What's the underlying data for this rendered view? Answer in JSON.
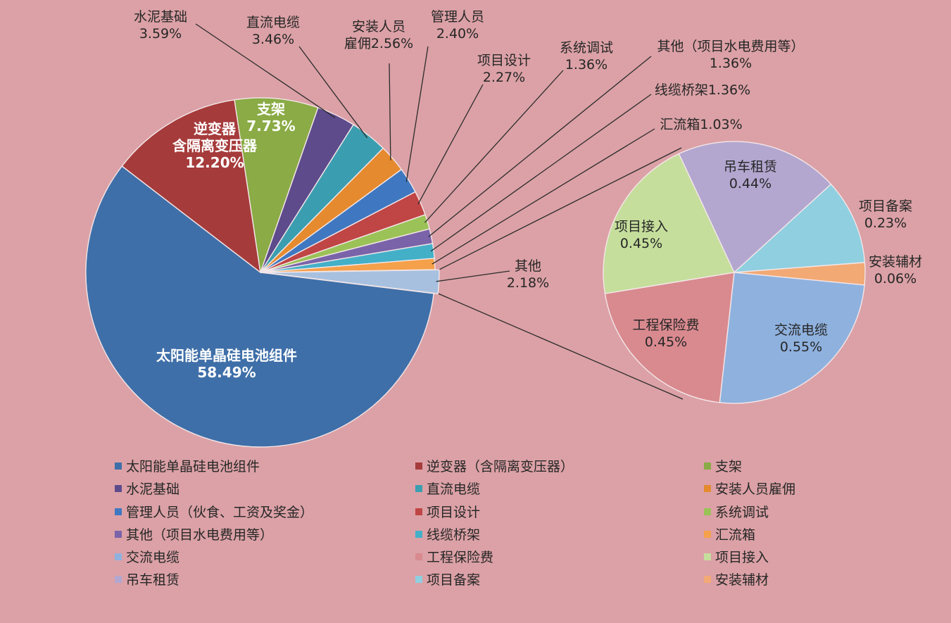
{
  "chart_data": {
    "type": "pie",
    "subtype": "pie-of-pie",
    "main_pie": [
      {
        "label": "太阳能单晶硅电池组件",
        "pct": "58.49%",
        "value": 58.49,
        "color": "#3f6fa8"
      },
      {
        "label": "逆变器（含隔离变压器）",
        "label_lines": [
          "逆变器",
          "含隔离变压器"
        ],
        "pct": "12.20%",
        "value": 12.2,
        "color": "#a63b3b"
      },
      {
        "label": "支架",
        "pct": "7.73%",
        "value": 7.73,
        "color": "#8aab45"
      },
      {
        "label": "水泥基础",
        "pct": "3.59%",
        "value": 3.59,
        "color": "#5d4b8c"
      },
      {
        "label": "直流电缆",
        "pct": "3.46%",
        "value": 3.46,
        "color": "#3b9eb0"
      },
      {
        "label": "安装人员雇佣",
        "label_lines": [
          "安装人员",
          "雇佣2.56%"
        ],
        "pct": "2.56%",
        "value": 2.56,
        "color": "#e58a2e"
      },
      {
        "label": "管理人员（伙食、工资及奖金）",
        "label_lines": [
          "管理人员",
          "2.40%"
        ],
        "pct": "2.40%",
        "value": 2.4,
        "color": "#3f78c0"
      },
      {
        "label": "项目设计",
        "pct": "2.27%",
        "value": 2.27,
        "color": "#c04545"
      },
      {
        "label": "系统调试",
        "pct": "1.36%",
        "value": 1.36,
        "color": "#9bc257"
      },
      {
        "label": "其他（项目水电费用等）",
        "label_lines": [
          "其他（项目水电费用等）",
          "1.36%"
        ],
        "pct": "1.36%",
        "value": 1.36,
        "color": "#7a63a8"
      },
      {
        "label": "线缆桥架",
        "label_lines": [
          "线缆桥架1.36%"
        ],
        "pct": "1.36%",
        "value": 1.36,
        "color": "#43b0c8"
      },
      {
        "label": "汇流箱",
        "label_lines": [
          "汇流箱1.03%"
        ],
        "pct": "1.03%",
        "value": 1.03,
        "color": "#f5a04a"
      },
      {
        "label": "其他",
        "pct": "2.18%",
        "value": 2.18,
        "color": "#a7c0df",
        "exploded": true
      }
    ],
    "secondary_pie": [
      {
        "label": "吊车租赁",
        "pct": "0.44%",
        "value": 0.44,
        "color": "#b3a7d0"
      },
      {
        "label": "项目备案",
        "pct": "0.23%",
        "value": 0.23,
        "color": "#8fcfe0"
      },
      {
        "label": "安装辅材",
        "pct": "0.06%",
        "value": 0.06,
        "color": "#f2a974"
      },
      {
        "label": "交流电缆",
        "pct": "0.55%",
        "value": 0.55,
        "color": "#8fb1de"
      },
      {
        "label": "工程保险费",
        "pct": "0.45%",
        "value": 0.45,
        "color": "#d98a8f"
      },
      {
        "label": "项目接入",
        "pct": "0.45%",
        "value": 0.45,
        "color": "#c5de9c"
      }
    ],
    "legend": {
      "placement": "bottom",
      "columns": 3,
      "items": [
        {
          "label": "太阳能单晶硅电池组件",
          "color": "#3f6fa8"
        },
        {
          "label": "逆变器（含隔离变压器）",
          "color": "#a63b3b"
        },
        {
          "label": "支架",
          "color": "#8aab45"
        },
        {
          "label": "水泥基础",
          "color": "#5d4b8c"
        },
        {
          "label": "直流电缆",
          "color": "#3b9eb0"
        },
        {
          "label": "安装人员雇佣",
          "color": "#e58a2e"
        },
        {
          "label": "管理人员（伙食、工资及奖金）",
          "color": "#3f78c0"
        },
        {
          "label": "项目设计",
          "color": "#c04545"
        },
        {
          "label": "系统调试",
          "color": "#9bc257"
        },
        {
          "label": "其他（项目水电费用等）",
          "color": "#7a63a8"
        },
        {
          "label": "线缆桥架",
          "color": "#43b0c8"
        },
        {
          "label": "汇流箱",
          "color": "#f5a04a"
        },
        {
          "label": "交流电缆",
          "color": "#8fb1de"
        },
        {
          "label": "工程保险费",
          "color": "#d98a8f"
        },
        {
          "label": "项目接入",
          "color": "#c5de9c"
        },
        {
          "label": "吊车租赁",
          "color": "#b3a7d0"
        },
        {
          "label": "项目备案",
          "color": "#8fcfe0"
        },
        {
          "label": "安装辅材",
          "color": "#f2a974"
        }
      ]
    }
  }
}
